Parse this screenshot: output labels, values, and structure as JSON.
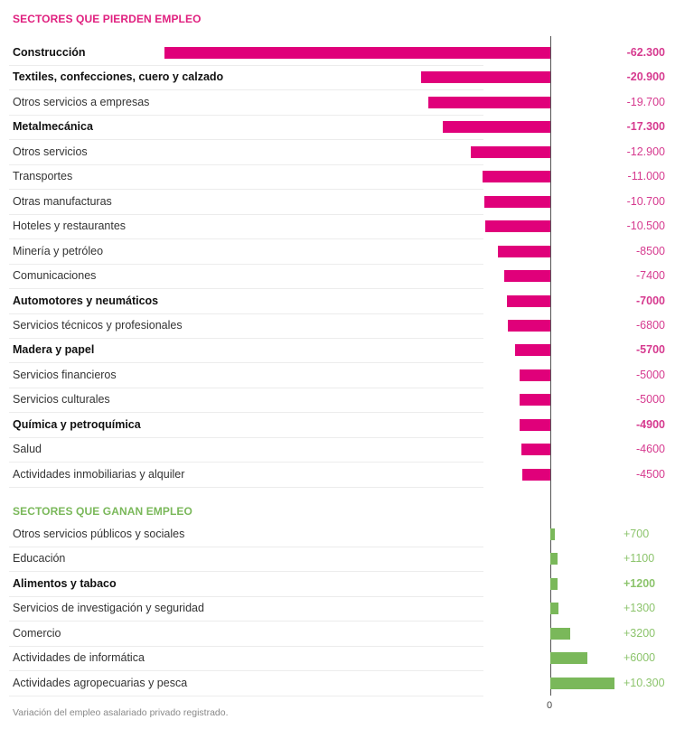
{
  "chart_data": {
    "type": "bar",
    "orientation": "horizontal",
    "colors": {
      "negative": "#e0007a",
      "positive": "#7ab85a",
      "negative_text": "#d63a8f",
      "positive_text": "#8cc46c",
      "negative_title": "#e0207f",
      "positive_title": "#7ab85a"
    },
    "groups": [
      {
        "title": "SECTORES QUE PIERDEN EMPLEO",
        "sign": "negative",
        "items": [
          {
            "label": "Construcción",
            "value": -62300,
            "display": "-62.300",
            "bold": true
          },
          {
            "label": "Textiles, confecciones, cuero y calzado",
            "value": -20900,
            "display": "-20.900",
            "bold": true
          },
          {
            "label": "Otros servicios a empresas",
            "value": -19700,
            "display": "-19.700",
            "bold": false
          },
          {
            "label": "Metalmecánica",
            "value": -17300,
            "display": "-17.300",
            "bold": true
          },
          {
            "label": "Otros servicios",
            "value": -12900,
            "display": "-12.900",
            "bold": false
          },
          {
            "label": "Transportes",
            "value": -11000,
            "display": "-11.000",
            "bold": false
          },
          {
            "label": "Otras manufacturas",
            "value": -10700,
            "display": "-10.700",
            "bold": false
          },
          {
            "label": "Hoteles y restaurantes",
            "value": -10500,
            "display": "-10.500",
            "bold": false
          },
          {
            "label": "Minería y petróleo",
            "value": -8500,
            "display": "-8500",
            "bold": false
          },
          {
            "label": "Comunicaciones",
            "value": -7400,
            "display": "-7400",
            "bold": false
          },
          {
            "label": "Automotores y neumáticos",
            "value": -7000,
            "display": "-7000",
            "bold": true
          },
          {
            "label": "Servicios técnicos y profesionales",
            "value": -6800,
            "display": "-6800",
            "bold": false
          },
          {
            "label": "Madera y papel",
            "value": -5700,
            "display": "-5700",
            "bold": true
          },
          {
            "label": "Servicios financieros",
            "value": -5000,
            "display": "-5000",
            "bold": false
          },
          {
            "label": "Servicios culturales",
            "value": -5000,
            "display": "-5000",
            "bold": false
          },
          {
            "label": "Química y petroquímica",
            "value": -4900,
            "display": "-4900",
            "bold": true
          },
          {
            "label": "Salud",
            "value": -4600,
            "display": "-4600",
            "bold": false
          },
          {
            "label": "Actividades inmobiliarias y alquiler",
            "value": -4500,
            "display": "-4500",
            "bold": false
          }
        ]
      },
      {
        "title": "SECTORES QUE GANAN EMPLEO",
        "sign": "positive",
        "items": [
          {
            "label": "Otros servicios públicos y sociales",
            "value": 700,
            "display": "+700",
            "bold": false
          },
          {
            "label": "Educación",
            "value": 1100,
            "display": "+1100",
            "bold": false
          },
          {
            "label": "Alimentos y tabaco",
            "value": 1200,
            "display": "+1200",
            "bold": true
          },
          {
            "label": "Servicios de investigación y seguridad",
            "value": 1300,
            "display": "+1300",
            "bold": false
          },
          {
            "label": "Comercio",
            "value": 3200,
            "display": "+3200",
            "bold": false
          },
          {
            "label": "Actividades de informática",
            "value": 6000,
            "display": "+6000",
            "bold": false
          },
          {
            "label": "Actividades agropecuarias y pesca",
            "value": 10300,
            "display": "+10.300",
            "bold": false
          }
        ]
      }
    ],
    "xlim": [
      -62300,
      10300
    ],
    "axis_zero_label": "0",
    "note": "Variación del empleo asalariado privado registrado."
  }
}
